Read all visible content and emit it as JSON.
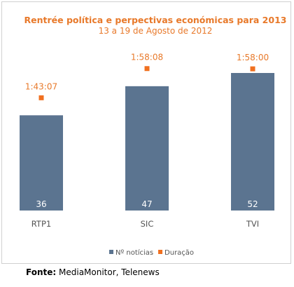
{
  "chart_data": {
    "type": "bar",
    "title": "Rentrée política e perpectivas económicas para 2013",
    "subtitle": "13 a 19 de Agosto de 2012",
    "categories": [
      "RTP1",
      "SIC",
      "TVI"
    ],
    "series": [
      {
        "name": "Nº notícias",
        "type": "bar",
        "values": [
          36,
          47,
          52
        ],
        "color": "#5b7490"
      },
      {
        "name": "Duração",
        "type": "marker",
        "values": [
          "1:43:07",
          "1:58:08",
          "1:58:00"
        ],
        "color": "#f07020"
      }
    ],
    "ylim": [
      0,
      60
    ],
    "grid": false,
    "legend": "bottom"
  },
  "source": {
    "label": "Fonte:",
    "text": "MediaMonitor, Telenews"
  },
  "colors": {
    "title": "#e8792a",
    "bar": "#5b7490",
    "marker": "#f07020",
    "axis_text": "#555555"
  }
}
